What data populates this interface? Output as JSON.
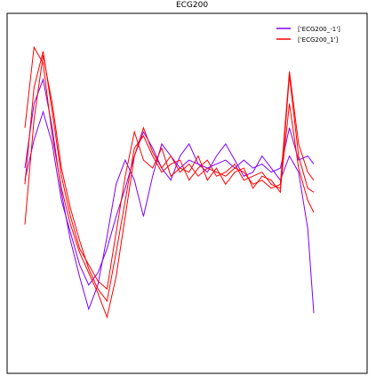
{
  "chart_data": {
    "type": "line",
    "title": "ECG200",
    "xlabel": "",
    "ylabel": "",
    "grid": false,
    "legend_position": "top-right",
    "ylim": [
      -3.5,
      4.0
    ],
    "x": [
      0,
      3,
      6,
      9,
      12,
      15,
      18,
      21,
      24,
      27,
      30,
      33,
      36,
      39,
      42,
      45,
      48,
      51,
      54,
      57,
      60,
      63,
      66,
      69,
      72,
      75,
      78,
      81,
      84,
      87,
      90,
      93,
      95
    ],
    "series": [
      {
        "name": "['ECG200_-1']",
        "color": "#7f00ff",
        "values": [
          [
            0.6,
            2.2,
            2.8,
            1.6,
            0.0,
            -1.2,
            -2.1,
            -2.9,
            -2.3,
            -1.1,
            0.2,
            0.8,
            0.3,
            -0.6,
            0.4,
            1.2,
            0.9,
            0.6,
            0.8,
            0.7,
            0.6,
            0.7,
            0.8,
            0.6,
            0.8,
            0.6,
            0.7,
            0.5,
            0.6,
            1.6,
            0.8,
            0.9,
            0.7
          ],
          [
            0.3,
            1.3,
            2.0,
            1.2,
            -0.2,
            -1.0,
            -1.8,
            -2.3,
            -2.0,
            -1.4,
            -0.6,
            0.1,
            0.9,
            1.5,
            1.1,
            0.6,
            0.3,
            0.9,
            1.2,
            0.7,
            0.5,
            0.9,
            1.2,
            0.8,
            0.4,
            0.5,
            0.9,
            0.6,
            0.3,
            0.9,
            0.5,
            -0.9,
            -3.0
          ]
        ]
      },
      {
        "name": "['ECG200_1']",
        "color": "#ff0000",
        "values": [
          [
            1.6,
            3.6,
            3.2,
            1.4,
            0.1,
            -0.8,
            -1.5,
            -2.0,
            -2.5,
            -3.1,
            -2.1,
            -0.6,
            0.9,
            1.6,
            1.0,
            0.6,
            0.9,
            0.5,
            0.7,
            0.4,
            0.6,
            0.5,
            0.4,
            0.6,
            0.5,
            0.2,
            0.3,
            0.1,
            0.2,
            3.0,
            1.2,
            0.5,
            0.3
          ],
          [
            -0.8,
            1.8,
            3.4,
            2.2,
            0.6,
            -0.4,
            -1.2,
            -1.9,
            -2.4,
            -2.7,
            -1.5,
            -0.2,
            1.1,
            1.4,
            0.9,
            0.5,
            0.7,
            0.8,
            0.3,
            0.6,
            0.8,
            0.4,
            0.5,
            0.7,
            0.3,
            0.4,
            0.5,
            0.2,
            0.1,
            2.2,
            0.6,
            -0.2,
            -0.5
          ],
          [
            0.2,
            2.6,
            3.5,
            2.0,
            0.4,
            -0.6,
            -1.4,
            -1.8,
            -2.2,
            -2.4,
            -1.0,
            0.4,
            1.5,
            0.8,
            0.6,
            1.1,
            0.4,
            0.6,
            0.5,
            0.9,
            0.3,
            0.6,
            0.2,
            0.5,
            0.6,
            0.1,
            0.4,
            0.3,
            0.0,
            2.9,
            0.9,
            0.1,
            0.0
          ]
        ]
      }
    ]
  }
}
